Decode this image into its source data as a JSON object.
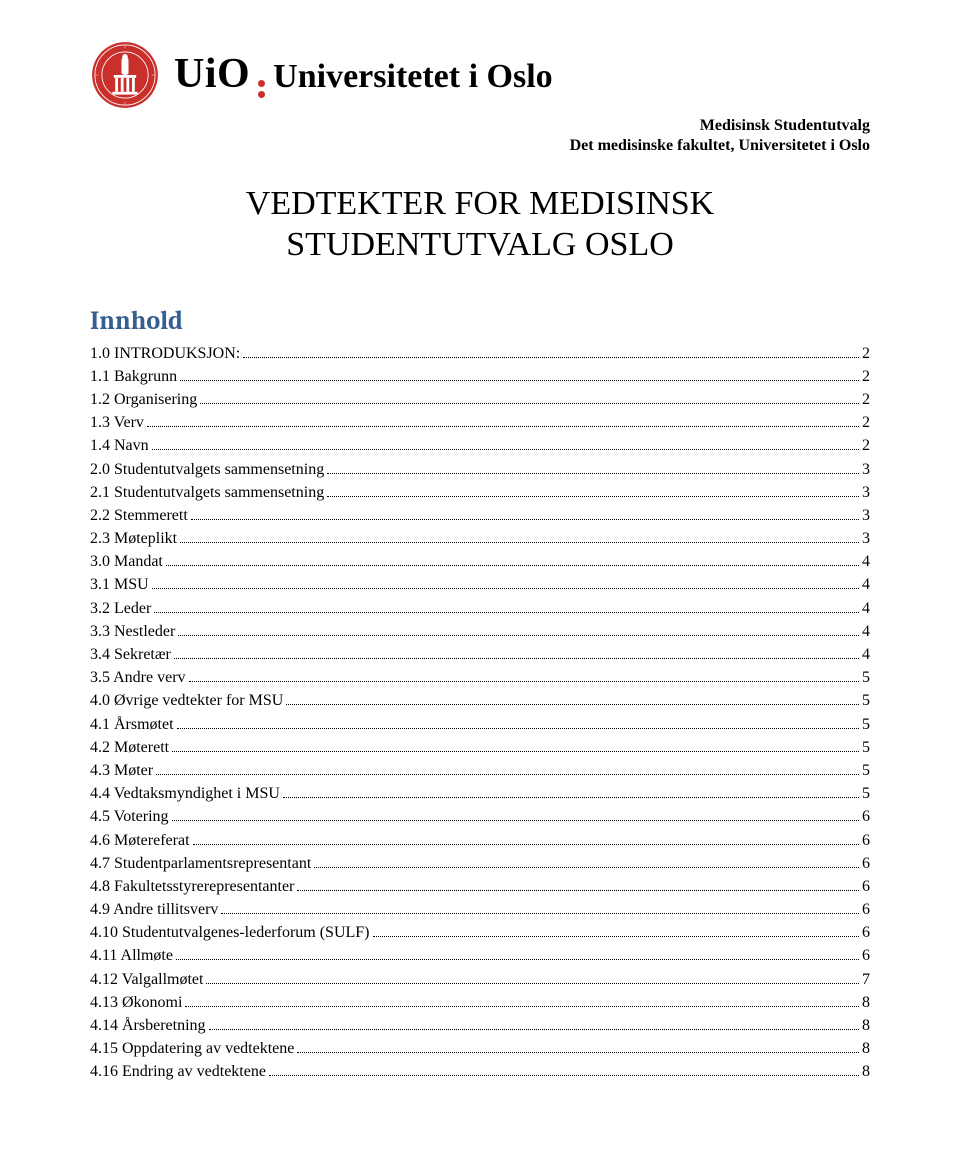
{
  "logo": {
    "seal_primary_color": "#c9302c",
    "wordmark_uio": "UiO",
    "wordmark_rest": "Universitetet i Oslo",
    "dot_color": "#c9302c"
  },
  "org": {
    "line1": "Medisinsk Studentutvalg",
    "line2": "Det medisinske fakultet, Universitetet i Oslo"
  },
  "title": {
    "line1": "VEDTEKTER FOR MEDISINSK",
    "line2": "STUDENTUTVALG OSLO"
  },
  "toc_heading": "Innhold",
  "toc_heading_color": "#365f91",
  "toc": [
    {
      "label": "1.0 INTRODUKSJON:",
      "page": "2"
    },
    {
      "label": "1.1 Bakgrunn",
      "page": "2"
    },
    {
      "label": "1.2  Organisering",
      "page": "2"
    },
    {
      "label": "1.3 Verv",
      "page": "2"
    },
    {
      "label": "1.4 Navn",
      "page": "2"
    },
    {
      "label": "2.0 Studentutvalgets sammensetning",
      "page": "3"
    },
    {
      "label": "2.1 Studentutvalgets sammensetning",
      "page": "3"
    },
    {
      "label": "2.2 Stemmerett",
      "page": "3"
    },
    {
      "label": "2.3 Møteplikt",
      "page": "3"
    },
    {
      "label": "3.0 Mandat",
      "page": "4"
    },
    {
      "label": "3.1 MSU",
      "page": "4"
    },
    {
      "label": "3.2 Leder",
      "page": "4"
    },
    {
      "label": "3.3 Nestleder",
      "page": "4"
    },
    {
      "label": "3.4 Sekretær",
      "page": "4"
    },
    {
      "label": "3.5 Andre verv",
      "page": "5"
    },
    {
      "label": "4.0 Øvrige vedtekter for MSU",
      "page": "5"
    },
    {
      "label": "4.1 Årsmøtet",
      "page": "5"
    },
    {
      "label": "4.2 Møterett",
      "page": "5"
    },
    {
      "label": "4.3 Møter",
      "page": "5"
    },
    {
      "label": "4.4 Vedtaksmyndighet i MSU",
      "page": "5"
    },
    {
      "label": "4.5 Votering",
      "page": "6"
    },
    {
      "label": "4.6 Møtereferat",
      "page": "6"
    },
    {
      "label": "4.7 Studentparlamentsrepresentant",
      "page": "6"
    },
    {
      "label": "4.8 Fakultetsstyrerepresentanter",
      "page": "6"
    },
    {
      "label": "4.9 Andre tillitsverv",
      "page": "6"
    },
    {
      "label": "4.10 Studentutvalgenes-lederforum (SULF)",
      "page": "6"
    },
    {
      "label": "4.11 Allmøte",
      "page": "6"
    },
    {
      "label": "4.12 Valgallmøtet",
      "page": "7"
    },
    {
      "label": "4.13 Økonomi",
      "page": "8"
    },
    {
      "label": "4.14 Årsberetning",
      "page": "8"
    },
    {
      "label": "4.15 Oppdatering av vedtektene",
      "page": "8"
    },
    {
      "label": "4.16 Endring av vedtektene",
      "page": "8"
    }
  ]
}
